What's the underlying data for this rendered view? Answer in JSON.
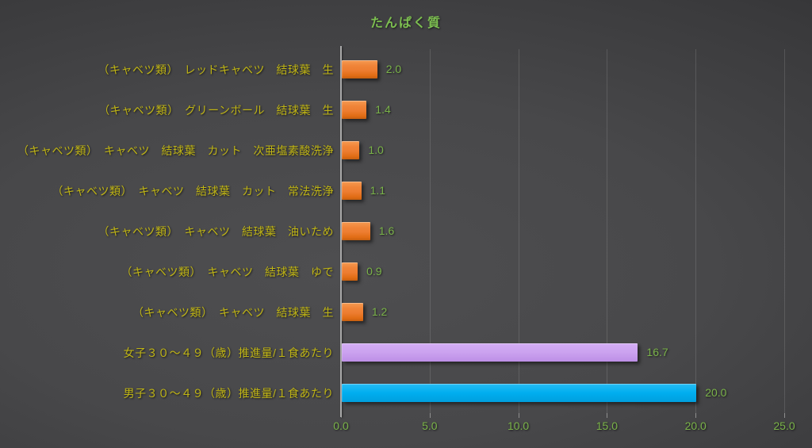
{
  "chart_data": {
    "type": "bar",
    "orientation": "horizontal",
    "title": "たんぱく質",
    "categories": [
      "（キャベツ類）　レッドキャベツ　結球葉　生",
      "（キャベツ類）　グリーンボール　結球葉　生",
      "（キャベツ類）　キャベツ　結球葉　カット　次亜塩素酸洗浄",
      "（キャベツ類）　キャベツ　結球葉　カット　常法洗浄",
      "（キャベツ類）　キャベツ　結球葉　油いため",
      "（キャベツ類）　キャベツ　結球葉　ゆで",
      "（キャベツ類）　キャベツ　結球葉　生",
      "女子３０～４９（歳）推進量/１食あたり",
      "男子３０～４９（歳）推進量/１食あたり"
    ],
    "values": [
      2.0,
      1.4,
      1.0,
      1.1,
      1.6,
      0.9,
      1.2,
      16.7,
      20.0
    ],
    "value_labels": [
      "2.0",
      "1.4",
      "1.0",
      "1.1",
      "1.6",
      "0.9",
      "1.2",
      "16.7",
      "20.0"
    ],
    "bar_styles": [
      "orange",
      "orange",
      "orange",
      "orange",
      "orange",
      "orange",
      "orange",
      "purple",
      "blue"
    ],
    "bar_colors": [
      "#ED7D31",
      "#ED7D31",
      "#ED7D31",
      "#ED7D31",
      "#ED7D31",
      "#ED7D31",
      "#ED7D31",
      "#C9A0EE",
      "#00AEEF"
    ],
    "xlim": [
      0,
      25
    ],
    "xticks": [
      "0.0",
      "5.0",
      "10.0",
      "15.0",
      "20.0",
      "25.0"
    ],
    "grid": true,
    "legend": "none",
    "xlabel": "",
    "ylabel": ""
  },
  "colors": {
    "title": "#7CBE50",
    "data_label": "#7AB349",
    "axis_tick_label": "#7AB349",
    "category_label": "#C0B515",
    "axis_line": "#A9A9A9",
    "orange_bar": "#ED7D31",
    "purple_bar": "#C9A0EE",
    "blue_bar": "#00AEEF"
  }
}
